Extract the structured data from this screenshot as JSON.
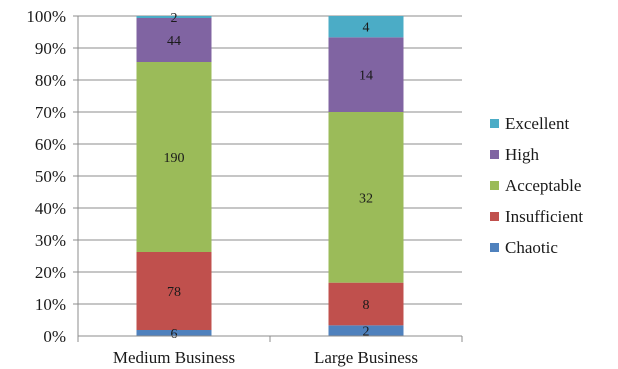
{
  "chart_data": {
    "type": "bar",
    "stacked": "percent",
    "categories": [
      "Medium Business",
      "Large Business"
    ],
    "series": [
      {
        "name": "Chaotic",
        "color": "#4f81bd",
        "values": [
          6,
          2
        ]
      },
      {
        "name": "Insufficient",
        "color": "#c0504d",
        "values": [
          78,
          8
        ]
      },
      {
        "name": "Acceptable",
        "color": "#9bbb59",
        "values": [
          190,
          32
        ]
      },
      {
        "name": "High",
        "color": "#8064a2",
        "values": [
          44,
          14
        ]
      },
      {
        "name": "Excellent",
        "color": "#4bacc6",
        "values": [
          2,
          4
        ]
      }
    ],
    "yticks": [
      "0%",
      "10%",
      "20%",
      "30%",
      "40%",
      "50%",
      "60%",
      "70%",
      "80%",
      "90%",
      "100%"
    ],
    "ylim": [
      0,
      100
    ],
    "grid": true,
    "legend_position": "right",
    "legend_order": [
      "Excellent",
      "High",
      "Acceptable",
      "Insufficient",
      "Chaotic"
    ]
  }
}
